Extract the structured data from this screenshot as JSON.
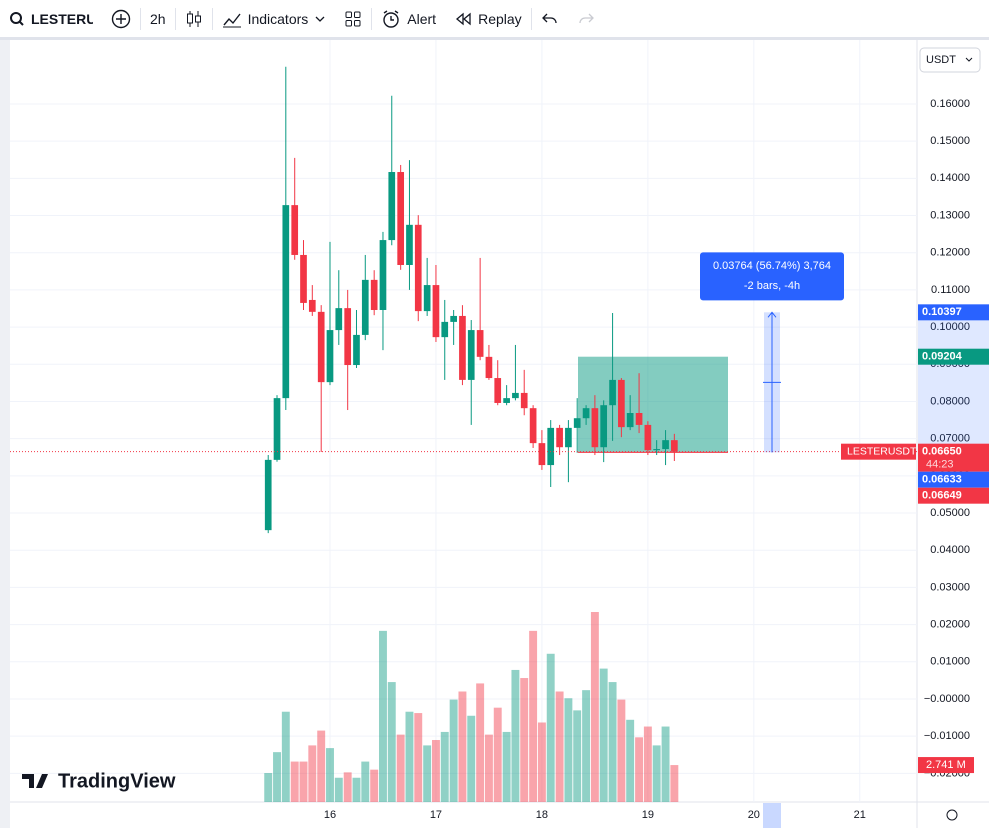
{
  "toolbar": {
    "symbol": "LESTERUSDT",
    "interval": "2h",
    "indicators": "Indicators",
    "alert": "Alert",
    "replay": "Replay"
  },
  "currency": "USDT",
  "logo": "TradingView",
  "chart_data": {
    "type": "candlestick",
    "x": [
      15.417,
      15.5,
      15.583,
      15.667,
      15.75,
      15.833,
      15.917,
      16,
      16.083,
      16.167,
      16.25,
      16.333,
      16.417,
      16.5,
      16.583,
      16.667,
      16.75,
      16.833,
      16.917,
      17,
      17.083,
      17.167,
      17.25,
      17.333,
      17.417,
      17.5,
      17.583,
      17.667,
      17.75,
      17.833,
      17.917,
      18,
      18.083,
      18.167,
      18.25,
      18.333,
      18.417,
      18.5,
      18.583,
      18.667,
      18.75,
      18.833,
      18.917,
      19,
      19.083,
      19.167,
      19.25
    ],
    "open": [
      0.0454,
      0.0643,
      0.0809,
      0.1328,
      0.1194,
      0.1073,
      0.1041,
      0.0852,
      0.0992,
      0.1051,
      0.0898,
      0.0979,
      0.1127,
      0.1046,
      0.1234,
      0.1417,
      0.1167,
      0.1275,
      0.1043,
      0.1113,
      0.0973,
      0.1014,
      0.103,
      0.0858,
      0.0992,
      0.092,
      0.0863,
      0.0796,
      0.0809,
      0.0823,
      0.0782,
      0.0688,
      0.0629,
      0.0729,
      0.0677,
      0.0729,
      0.0755,
      0.0782,
      0.0677,
      0.079,
      0.0858,
      0.0731,
      0.0769,
      0.0737,
      0.0669,
      0.0672,
      0.0696
    ],
    "high": [
      0.0656,
      0.0817,
      0.17,
      0.1455,
      0.1234,
      0.1113,
      0.1059,
      0.1229,
      0.1153,
      0.11,
      0.1046,
      0.1194,
      0.1153,
      0.1256,
      0.1622,
      0.1436,
      0.1449,
      0.1301,
      0.1186,
      0.1167,
      0.1073,
      0.1046,
      0.1059,
      0.1019,
      0.1186,
      0.0952,
      0.0911,
      0.0844,
      0.0952,
      0.0885,
      0.079,
      0.0723,
      0.075,
      0.0737,
      0.075,
      0.0809,
      0.079,
      0.0817,
      0.0803,
      0.1038,
      0.0863,
      0.0817,
      0.0876,
      0.0747,
      0.0696,
      0.0723,
      0.0713
    ],
    "low": [
      0.0446,
      0.0638,
      0.0777,
      0.1181,
      0.1046,
      0.103,
      0.0664,
      0.0844,
      0.0952,
      0.0777,
      0.089,
      0.0965,
      0.1032,
      0.0938,
      0.122,
      0.1154,
      0.11,
      0.1016,
      0.103,
      0.096,
      0.0858,
      0.0952,
      0.0844,
      0.0737,
      0.0911,
      0.0858,
      0.079,
      0.079,
      0.0803,
      0.0763,
      0.0675,
      0.0616,
      0.057,
      0.0656,
      0.0583,
      0.0662,
      0.0737,
      0.0656,
      0.0637,
      0.0694,
      0.0704,
      0.0723,
      0.0715,
      0.0656,
      0.0656,
      0.0629,
      0.064
    ],
    "close": [
      0.0643,
      0.0809,
      0.1328,
      0.1194,
      0.1065,
      0.1041,
      0.0852,
      0.0992,
      0.1051,
      0.0898,
      0.0979,
      0.1127,
      0.1046,
      0.1234,
      0.1417,
      0.1167,
      0.1275,
      0.1043,
      0.1113,
      0.0973,
      0.1014,
      0.103,
      0.0858,
      0.0992,
      0.092,
      0.0863,
      0.0796,
      0.0809,
      0.0823,
      0.0782,
      0.0688,
      0.0629,
      0.0729,
      0.0677,
      0.0729,
      0.0755,
      0.0782,
      0.0677,
      0.079,
      0.0858,
      0.0731,
      0.0769,
      0.0737,
      0.0669,
      0.0672,
      0.0696,
      0.0665
    ],
    "up_color": "#089981",
    "down_color": "#f23645",
    "volume": {
      "values": [
        2.15,
        3.7,
        6.7,
        3.0,
        3.0,
        4.2,
        5.3,
        4.0,
        1.8,
        2.2,
        1.8,
        3.0,
        2.4,
        12.7,
        8.9,
        5.0,
        6.7,
        6.6,
        4.2,
        4.6,
        5.2,
        7.6,
        8.2,
        6.4,
        8.8,
        5.0,
        7.0,
        5.2,
        9.8,
        9.2,
        12.7,
        5.9,
        11.0,
        8.2,
        7.7,
        6.8,
        8.3,
        14.1,
        9.9,
        8.9,
        7.6,
        6.1,
        4.8,
        5.6,
        4.2,
        5.6,
        2.741
      ],
      "last_label": "2.741 M"
    },
    "xlim": [
      12.98,
      21.54
    ],
    "xticks": [
      16,
      17,
      18,
      19,
      20,
      21
    ],
    "ylim": [
      -0.0277,
      0.1772
    ],
    "yticks": [
      {
        "value": -0.02,
        "label": "−0.02000"
      },
      {
        "value": -0.01,
        "label": "−0.01000"
      },
      {
        "value": 0,
        "label": "−0.00000"
      },
      {
        "value": 0.01,
        "label": "0.01000"
      },
      {
        "value": 0.02,
        "label": "0.02000"
      },
      {
        "value": 0.03,
        "label": "0.03000"
      },
      {
        "value": 0.04,
        "label": "0.04000"
      },
      {
        "value": 0.05,
        "label": "0.05000"
      },
      {
        "value": 0.06,
        "label": "0.06000"
      },
      {
        "value": 0.07,
        "label": "0.07000"
      },
      {
        "value": 0.08,
        "label": "0.08000"
      },
      {
        "value": 0.09,
        "label": "0.09000"
      },
      {
        "value": 0.1,
        "label": "0.10000"
      },
      {
        "value": 0.11,
        "label": "0.11000"
      },
      {
        "value": 0.12,
        "label": "0.12000"
      },
      {
        "value": 0.13,
        "label": "0.13000"
      },
      {
        "value": 0.14,
        "label": "0.14000"
      },
      {
        "value": 0.15,
        "label": "0.15000"
      },
      {
        "value": 0.16,
        "label": "0.16000"
      }
    ],
    "grid": true,
    "position": {
      "top": 0.09204,
      "bottom": 0.06633,
      "color": "#089981"
    },
    "measure": {
      "from": 0.06633,
      "to": 0.10397,
      "text": "0.03764 (56.74%) 3,764",
      "subtext": "-2 bars, -4h",
      "color": "#2962ff"
    },
    "price_labels": [
      {
        "value": 0.10397,
        "label": "0.10397",
        "color": "#2962ff"
      },
      {
        "value": 0.09204,
        "label": "0.09204",
        "color": "#089981"
      },
      {
        "value": 0.0665,
        "label": "0.06650",
        "symbol": "LESTERUSDT",
        "countdown": "44:23",
        "color": "#f23645"
      },
      {
        "value": 0.06633,
        "label": "0.06633",
        "color": "#2962ff"
      },
      {
        "value": 0.06649,
        "label": "0.06649",
        "color": "#f23645"
      }
    ]
  }
}
